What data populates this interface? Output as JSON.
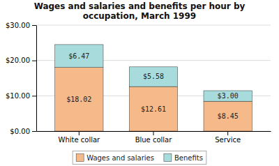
{
  "chart_data": {
    "type": "bar",
    "stacked": true,
    "title": "Wages and salaries and benefits per hour by\noccupation, March 1999",
    "categories": [
      "White collar",
      "Blue collar",
      "Service"
    ],
    "series": [
      {
        "name": "Wages and salaries",
        "color": "#F5B98A",
        "values": [
          18.02,
          12.61,
          8.45
        ],
        "value_labels": [
          "$18.02",
          "$12.61",
          "$8.45"
        ]
      },
      {
        "name": "Benefits",
        "color": "#A8DCDC",
        "values": [
          6.47,
          5.58,
          3.0
        ],
        "value_labels": [
          "$6.47",
          "$5.58",
          "$3.00"
        ]
      }
    ],
    "ylim": [
      0,
      30
    ],
    "yticks": [
      {
        "value": 0,
        "label": "$0.00"
      },
      {
        "value": 10,
        "label": "$10.00"
      },
      {
        "value": 20,
        "label": "$20.00"
      },
      {
        "value": 30,
        "label": "$30.00"
      }
    ],
    "grid": true,
    "data_labels": true,
    "legend": "bottom"
  }
}
